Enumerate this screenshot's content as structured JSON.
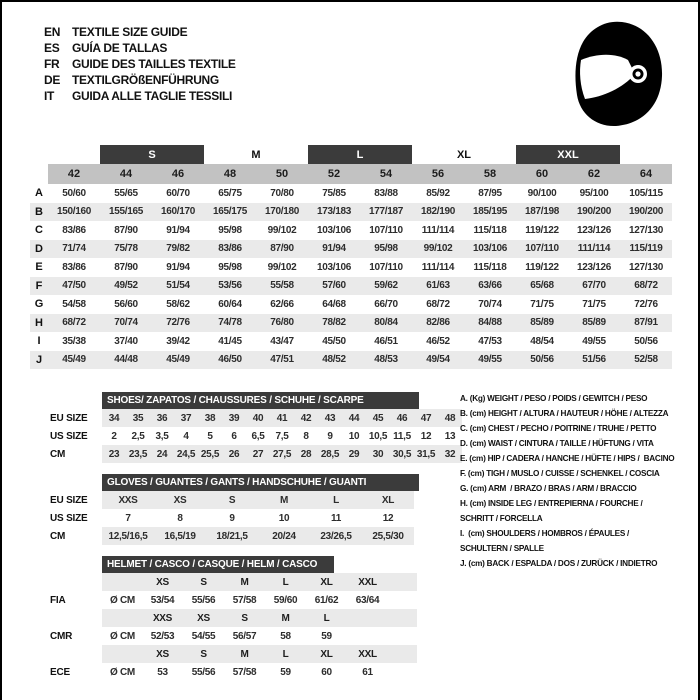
{
  "page": {
    "languages": [
      {
        "code": "EN",
        "label": "TEXTILE SIZE GUIDE"
      },
      {
        "code": "ES",
        "label": "GUÍA DE TALLAS"
      },
      {
        "code": "FR",
        "label": "GUIDE DES TAILLES TEXTILE"
      },
      {
        "code": "DE",
        "label": "TEXTILGRÖßENFÜHRUNG"
      },
      {
        "code": "IT",
        "label": "GUIDA ALLE TAGLIE TESSILI"
      }
    ],
    "helmet_icon": "racing-helmet-icon"
  },
  "colors": {
    "dark_bar": "#3b3b3b",
    "header_band": "#c2c2c2",
    "row_stripe": "#eaeaea",
    "text": "#111111"
  },
  "main_table": {
    "size_bands": [
      {
        "label": "S",
        "style": "dark",
        "start_col": "44",
        "end_col": "46"
      },
      {
        "label": "M",
        "style": "plain",
        "start_col": "48",
        "end_col": "50"
      },
      {
        "label": "L",
        "style": "dark",
        "start_col": "52",
        "end_col": "54"
      },
      {
        "label": "XL",
        "style": "plain",
        "start_col": "56",
        "end_col": "58"
      },
      {
        "label": "XXL",
        "style": "dark",
        "start_col": "60",
        "end_col": "62"
      }
    ],
    "columns": [
      "42",
      "44",
      "46",
      "48",
      "50",
      "52",
      "54",
      "56",
      "58",
      "60",
      "62",
      "64"
    ],
    "rows": [
      {
        "letter": "A",
        "values": [
          "50/60",
          "55/65",
          "60/70",
          "65/75",
          "70/80",
          "75/85",
          "83/88",
          "85/92",
          "87/95",
          "90/100",
          "95/100",
          "105/115"
        ]
      },
      {
        "letter": "B",
        "values": [
          "150/160",
          "155/165",
          "160/170",
          "165/175",
          "170/180",
          "173/183",
          "177/187",
          "182/190",
          "185/195",
          "187/198",
          "190/200",
          "190/200"
        ]
      },
      {
        "letter": "C",
        "values": [
          "83/86",
          "87/90",
          "91/94",
          "95/98",
          "99/102",
          "103/106",
          "107/110",
          "111/114",
          "115/118",
          "119/122",
          "123/126",
          "127/130"
        ]
      },
      {
        "letter": "D",
        "values": [
          "71/74",
          "75/78",
          "79/82",
          "83/86",
          "87/90",
          "91/94",
          "95/98",
          "99/102",
          "103/106",
          "107/110",
          "111/114",
          "115/119"
        ]
      },
      {
        "letter": "E",
        "values": [
          "83/86",
          "87/90",
          "91/94",
          "95/98",
          "99/102",
          "103/106",
          "107/110",
          "111/114",
          "115/118",
          "119/122",
          "123/126",
          "127/130"
        ]
      },
      {
        "letter": "F",
        "values": [
          "47/50",
          "49/52",
          "51/54",
          "53/56",
          "55/58",
          "57/60",
          "59/62",
          "61/63",
          "63/66",
          "65/68",
          "67/70",
          "68/72"
        ]
      },
      {
        "letter": "G",
        "values": [
          "54/58",
          "56/60",
          "58/62",
          "60/64",
          "62/66",
          "64/68",
          "66/70",
          "68/72",
          "70/74",
          "71/75",
          "71/75",
          "72/76"
        ]
      },
      {
        "letter": "H",
        "values": [
          "68/72",
          "70/74",
          "72/76",
          "74/78",
          "76/80",
          "78/82",
          "80/84",
          "82/86",
          "84/88",
          "85/89",
          "85/89",
          "87/91"
        ]
      },
      {
        "letter": "I",
        "values": [
          "35/38",
          "37/40",
          "39/42",
          "41/45",
          "43/47",
          "45/50",
          "46/51",
          "46/52",
          "47/53",
          "48/54",
          "49/55",
          "50/56"
        ]
      },
      {
        "letter": "J",
        "values": [
          "45/49",
          "44/48",
          "45/49",
          "46/50",
          "47/51",
          "48/52",
          "48/53",
          "49/54",
          "49/55",
          "50/56",
          "51/56",
          "52/58"
        ]
      }
    ]
  },
  "shoes": {
    "title": "SHOES/ ZAPATOS / CHAUSSURES / SCHUHE / SCARPE",
    "row_labels": [
      "EU SIZE",
      "US SIZE",
      "CM"
    ],
    "rows": [
      [
        "34",
        "35",
        "36",
        "37",
        "38",
        "39",
        "40",
        "41",
        "42",
        "43",
        "44",
        "45",
        "46",
        "47",
        "48"
      ],
      [
        "2",
        "2,5",
        "3,5",
        "4",
        "5",
        "6",
        "6,5",
        "7,5",
        "8",
        "9",
        "10",
        "10,5",
        "11,5",
        "12",
        "13"
      ],
      [
        "23",
        "23,5",
        "24",
        "24,5",
        "25,5",
        "26",
        "27",
        "27,5",
        "28",
        "28,5",
        "29",
        "30",
        "30,5",
        "31,5",
        "32"
      ]
    ]
  },
  "gloves": {
    "title": "GLOVES / GUANTES / GANTS / HANDSCHUHE / GUANTI",
    "row_labels": [
      "EU SIZE",
      "US SIZE",
      "CM"
    ],
    "rows": [
      [
        "XXS",
        "XS",
        "S",
        "M",
        "L",
        "XL"
      ],
      [
        "7",
        "8",
        "9",
        "10",
        "11",
        "12"
      ],
      [
        "12,5/16,5",
        "16,5/19",
        "18/21,5",
        "20/24",
        "23/26,5",
        "25,5/30"
      ]
    ]
  },
  "helmet": {
    "title": "HELMET / CASCO / CASQUE / HELM / CASCO",
    "standards": [
      {
        "name": "FIA",
        "unit": "Ø CM",
        "sizes": [
          "XS",
          "S",
          "M",
          "L",
          "XL",
          "XXL"
        ],
        "values": [
          "53/54",
          "55/56",
          "57/58",
          "59/60",
          "61/62",
          "63/64"
        ]
      },
      {
        "name": "CMR",
        "unit": "Ø CM",
        "sizes": [
          "XXS",
          "XS",
          "S",
          "M",
          "L"
        ],
        "values": [
          "52/53",
          "54/55",
          "56/57",
          "58",
          "59"
        ]
      },
      {
        "name": "ECE",
        "unit": "Ø CM",
        "sizes": [
          "XS",
          "S",
          "M",
          "L",
          "XL",
          "XXL"
        ],
        "values": [
          "53",
          "55/56",
          "57/58",
          "59",
          "60",
          "61"
        ]
      }
    ]
  },
  "legend": {
    "items": [
      "A. (Kg) WEIGHT / PESO / POIDS / GEWITCH / PESO",
      "B. (cm) HEIGHT / ALTURA / HAUTEUR / HÖHE / ALTEZZA",
      "C. (cm) CHEST / PECHO / POITRINE / TRUHE / PETTO",
      "D. (cm) WAIST / CINTURA / TAILLE / HÜFTUNG / VITA",
      "E. (cm) HIP / CADERA / HANCHE / HÜFTE / HIPS /  BACINO",
      "F. (cm) TIGH / MUSLO / CUISSE / SCHENKEL / COSCIA",
      "G. (cm) ARM  / BRAZO / BRAS / ARM / BRACCIO",
      "H. (cm) INSIDE LEG / ENTREPIERNA / FOURCHE /\nSCHRITT / FORCELLA",
      "I.  (cm) SHOULDERS / HOMBROS / ÉPAULES /\nSCHULTERN / SPALLE",
      "J. (cm) BACK / ESPALDA / DOS / ZURÜCK / INDIETRO"
    ]
  }
}
